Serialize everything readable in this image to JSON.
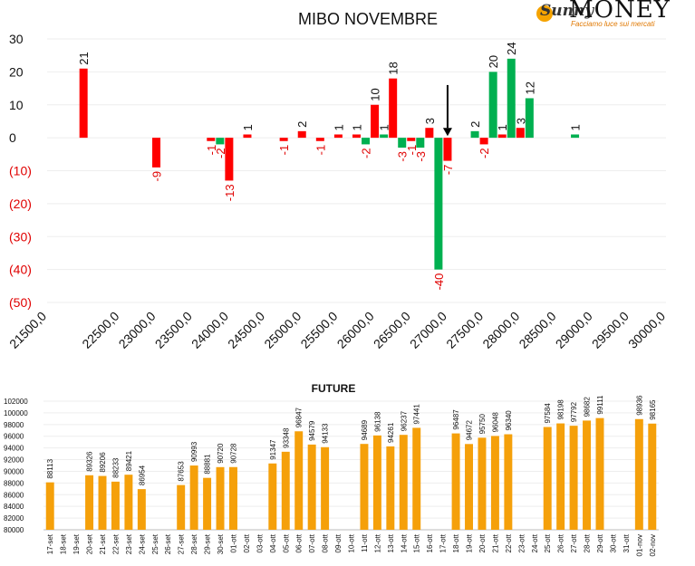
{
  "logo": {
    "script": "Sunny",
    "brand": "MONEY",
    "tagline": "Facciamo luce sui mercati"
  },
  "top_chart": {
    "title": "MIBO NOVEMBRE",
    "y_ticks": [
      "30",
      "20",
      "10",
      "0",
      "(10)",
      "(20)",
      "(30)",
      "(40)",
      "(50)"
    ],
    "x_ticks": [
      "21500,0",
      "22500,0",
      "23000,0",
      "23500,0",
      "24000,0",
      "24500,0",
      "25000,0",
      "25500,0",
      "26000,0",
      "26500,0",
      "27000,0",
      "27500,0",
      "28000,0",
      "28500,0",
      "29000,0",
      "29500,0",
      "30000,0"
    ]
  },
  "bottom_chart": {
    "title": "FUTURE",
    "y_ticks": [
      "102000",
      "100000",
      "98000",
      "96000",
      "94000",
      "92000",
      "90000",
      "88000",
      "86000",
      "84000",
      "82000",
      "80000"
    ]
  },
  "chart_data": [
    {
      "type": "bar",
      "title": "MIBO NOVEMBRE",
      "ylim": [
        -50,
        30
      ],
      "x_axis_ticks": [
        21500,
        22500,
        23000,
        23500,
        24000,
        24500,
        25000,
        25500,
        26000,
        26500,
        27000,
        27500,
        28000,
        28500,
        29000,
        29500,
        30000
      ],
      "series": [
        {
          "color": "#ff0000",
          "points": [
            {
              "strike": 22000,
              "value": 21
            },
            {
              "strike": 23000,
              "value": -9
            },
            {
              "strike": 23750,
              "value": -1
            },
            {
              "strike": 24000,
              "value": -13
            },
            {
              "strike": 24250,
              "value": 1
            },
            {
              "strike": 24750,
              "value": -1
            },
            {
              "strike": 25000,
              "value": 2
            },
            {
              "strike": 25250,
              "value": -1
            },
            {
              "strike": 25500,
              "value": 1
            },
            {
              "strike": 25750,
              "value": 1
            },
            {
              "strike": 26000,
              "value": 10
            },
            {
              "strike": 26250,
              "value": 18
            },
            {
              "strike": 26500,
              "value": -1
            },
            {
              "strike": 26750,
              "value": 3
            },
            {
              "strike": 27000,
              "value": -7
            },
            {
              "strike": 27500,
              "value": -2
            },
            {
              "strike": 27750,
              "value": 1
            },
            {
              "strike": 28000,
              "value": 3
            }
          ]
        },
        {
          "color": "#00b050",
          "points": [
            {
              "strike": 23875,
              "value": -2
            },
            {
              "strike": 25875,
              "value": -2
            },
            {
              "strike": 26125,
              "value": 1
            },
            {
              "strike": 26375,
              "value": -3
            },
            {
              "strike": 26625,
              "value": -3
            },
            {
              "strike": 26875,
              "value": -40
            },
            {
              "strike": 27375,
              "value": 2
            },
            {
              "strike": 27625,
              "value": 20
            },
            {
              "strike": 27875,
              "value": 24
            },
            {
              "strike": 28125,
              "value": 12
            },
            {
              "strike": 28750,
              "value": 1
            }
          ]
        }
      ],
      "annotation": {
        "type": "down-arrow",
        "strike": 27000
      }
    },
    {
      "type": "bar",
      "title": "FUTURE",
      "color": "#f5a00a",
      "ylim": [
        80000,
        102000
      ],
      "categories": [
        "17-set",
        "18-set",
        "19-set",
        "20-set",
        "21-set",
        "22-set",
        "23-set",
        "24-set",
        "25-set",
        "26-set",
        "27-set",
        "28-set",
        "29-set",
        "30-set",
        "01-ott",
        "02-ott",
        "03-ott",
        "04-ott",
        "05-ott",
        "06-ott",
        "07-ott",
        "08-ott",
        "09-ott",
        "10-ott",
        "11-ott",
        "12-ott",
        "13-ott",
        "14-ott",
        "15-ott",
        "16-ott",
        "17-ott",
        "18-ott",
        "19-ott",
        "20-ott",
        "21-ott",
        "22-ott",
        "23-ott",
        "24-ott",
        "25-ott",
        "26-ott",
        "27-ott",
        "28-ott",
        "29-ott",
        "30-ott",
        "31-ott",
        "01-nov",
        "02-nov"
      ],
      "values": [
        88113,
        null,
        null,
        89326,
        89206,
        88233,
        89421,
        86954,
        null,
        null,
        87653,
        90993,
        88881,
        90720,
        90728,
        null,
        null,
        91347,
        93348,
        96847,
        94579,
        94133,
        null,
        null,
        94689,
        96138,
        94261,
        96237,
        97441,
        null,
        null,
        96487,
        94672,
        95750,
        96048,
        96340,
        null,
        null,
        97584,
        98198,
        97792,
        98682,
        99111,
        null,
        null,
        98936,
        98165
      ]
    }
  ]
}
